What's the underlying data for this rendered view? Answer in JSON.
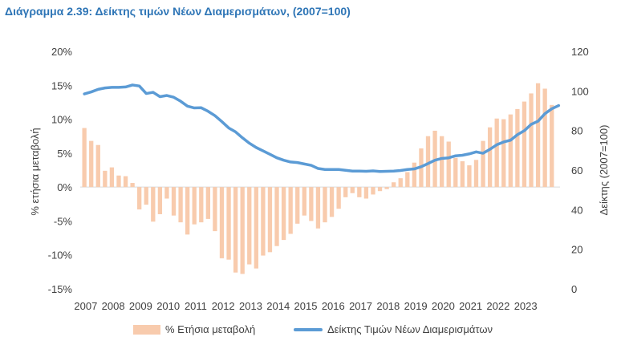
{
  "title": "Διάγραμμα 2.39: Δείκτης τιμών Νέων Διαμερισμάτων, (2007=100)",
  "chart_data": {
    "type": "bar+line",
    "title": "Διάγραμμα 2.39: Δείκτης τιμών Νέων Διαμερισμάτων, (2007=100)",
    "ylabel_left": "% ετήσια μεταβολή",
    "ylabel_right": "Δείκτης (2007=100)",
    "ylim_left": [
      -15,
      20
    ],
    "ylim_right": [
      0,
      120
    ],
    "yticks_left": [
      "20%",
      "15%",
      "10%",
      "5%",
      "0%",
      "-5%",
      "-10%",
      "-15%"
    ],
    "yticks_right": [
      "120",
      "100",
      "80",
      "60",
      "40",
      "20",
      "0"
    ],
    "x_years": [
      "2007",
      "2008",
      "2009",
      "2010",
      "2011",
      "2012",
      "2013",
      "2014",
      "2015",
      "2016",
      "2017",
      "2018",
      "2019",
      "2020",
      "2021",
      "2022",
      "2023"
    ],
    "legend_position": "bottom",
    "series": [
      {
        "name": "% Ετήσια μεταβολή",
        "kind": "bar",
        "color": "#f8cbad",
        "values": [
          8.7,
          6.8,
          6.2,
          2.4,
          2.9,
          1.7,
          1.6,
          0.6,
          -3.3,
          -2.6,
          -5.1,
          -4.0,
          -1.7,
          -4.2,
          -5.2,
          -7.0,
          -5.5,
          -5.2,
          -4.7,
          -6.5,
          -10.5,
          -10.7,
          -12.6,
          -12.8,
          -11.4,
          -12.0,
          -10.1,
          -9.6,
          -8.7,
          -7.8,
          -6.9,
          -5.4,
          -4.2,
          -5.0,
          -6.1,
          -5.2,
          -4.4,
          -3.2,
          -1.5,
          -0.9,
          -1.5,
          -1.7,
          -1.1,
          -0.6,
          -0.3,
          0.7,
          1.3,
          2.2,
          3.6,
          5.7,
          7.5,
          8.3,
          7.5,
          6.7,
          4.3,
          3.8,
          3.2,
          4.0,
          6.8,
          8.8,
          10.1,
          10.0,
          10.7,
          11.5,
          12.6,
          13.8,
          15.3,
          14.5,
          12.1
        ],
        "x_start": 2007.0,
        "x_step": 0.25
      },
      {
        "name": "Δείκτης Τιμών Νέων Διαμερισμάτων",
        "kind": "line",
        "axis": "right",
        "color": "#5b9bd5",
        "values": [
          98.5,
          99.5,
          100.8,
          101.5,
          101.8,
          101.8,
          102.0,
          103.0,
          102.5,
          98.7,
          99.3,
          97.1,
          97.7,
          96.8,
          94.8,
          92.3,
          91.4,
          91.5,
          89.7,
          87.5,
          84.5,
          81.3,
          79.3,
          76.3,
          73.6,
          71.4,
          69.7,
          68.0,
          66.2,
          65.0,
          64.1,
          63.8,
          63.1,
          62.4,
          60.8,
          60.3,
          60.3,
          60.3,
          59.9,
          59.5,
          59.5,
          59.4,
          59.6,
          59.3,
          59.4,
          59.5,
          59.8,
          60.3,
          60.6,
          61.7,
          63.3,
          65.0,
          65.9,
          66.2,
          67.2,
          67.5,
          68.2,
          69.2,
          68.5,
          70.5,
          72.8,
          74.2,
          75.1,
          77.9,
          79.9,
          83.1,
          84.7,
          88.5,
          91.0,
          92.6
        ],
        "x_start": 2007.0,
        "x_step": 0.25
      }
    ]
  }
}
